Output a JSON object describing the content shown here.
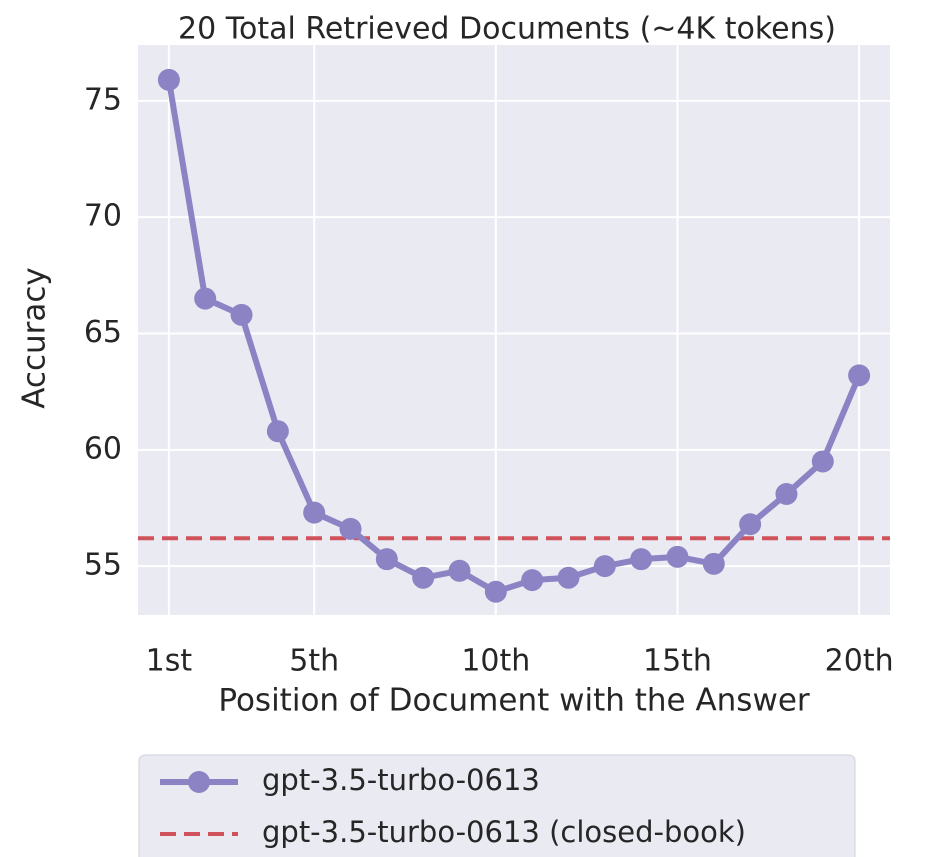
{
  "chart_data": {
    "type": "line",
    "title": "20 Total Retrieved Documents (~4K tokens)",
    "x_label": "Position of Document with the Answer",
    "y_label": "Accuracy",
    "x": [
      1,
      2,
      3,
      4,
      5,
      6,
      7,
      8,
      9,
      10,
      11,
      12,
      13,
      14,
      15,
      16,
      17,
      18,
      19,
      20
    ],
    "series": [
      {
        "name": "gpt-3.5-turbo-0613",
        "color": "#8c83c4",
        "values": [
          75.9,
          66.5,
          65.8,
          60.8,
          57.3,
          56.6,
          55.3,
          54.5,
          54.8,
          53.9,
          54.4,
          54.5,
          55.0,
          55.3,
          55.4,
          55.1,
          56.8,
          58.1,
          59.5,
          63.2
        ]
      }
    ],
    "reference": {
      "name": "gpt-3.5-turbo-0613 (closed-book)",
      "color": "#d0525a",
      "value": 56.2
    },
    "xlim": [
      0.15,
      20.85
    ],
    "ylim": [
      52.9,
      77.4
    ],
    "xticks": [
      {
        "value": 1,
        "label": "1st"
      },
      {
        "value": 5,
        "label": "5th"
      },
      {
        "value": 10,
        "label": "10th"
      },
      {
        "value": 15,
        "label": "15th"
      },
      {
        "value": 20,
        "label": "20th"
      }
    ],
    "yticks": [
      55,
      60,
      65,
      70,
      75
    ],
    "grid": true,
    "legend": "below"
  }
}
